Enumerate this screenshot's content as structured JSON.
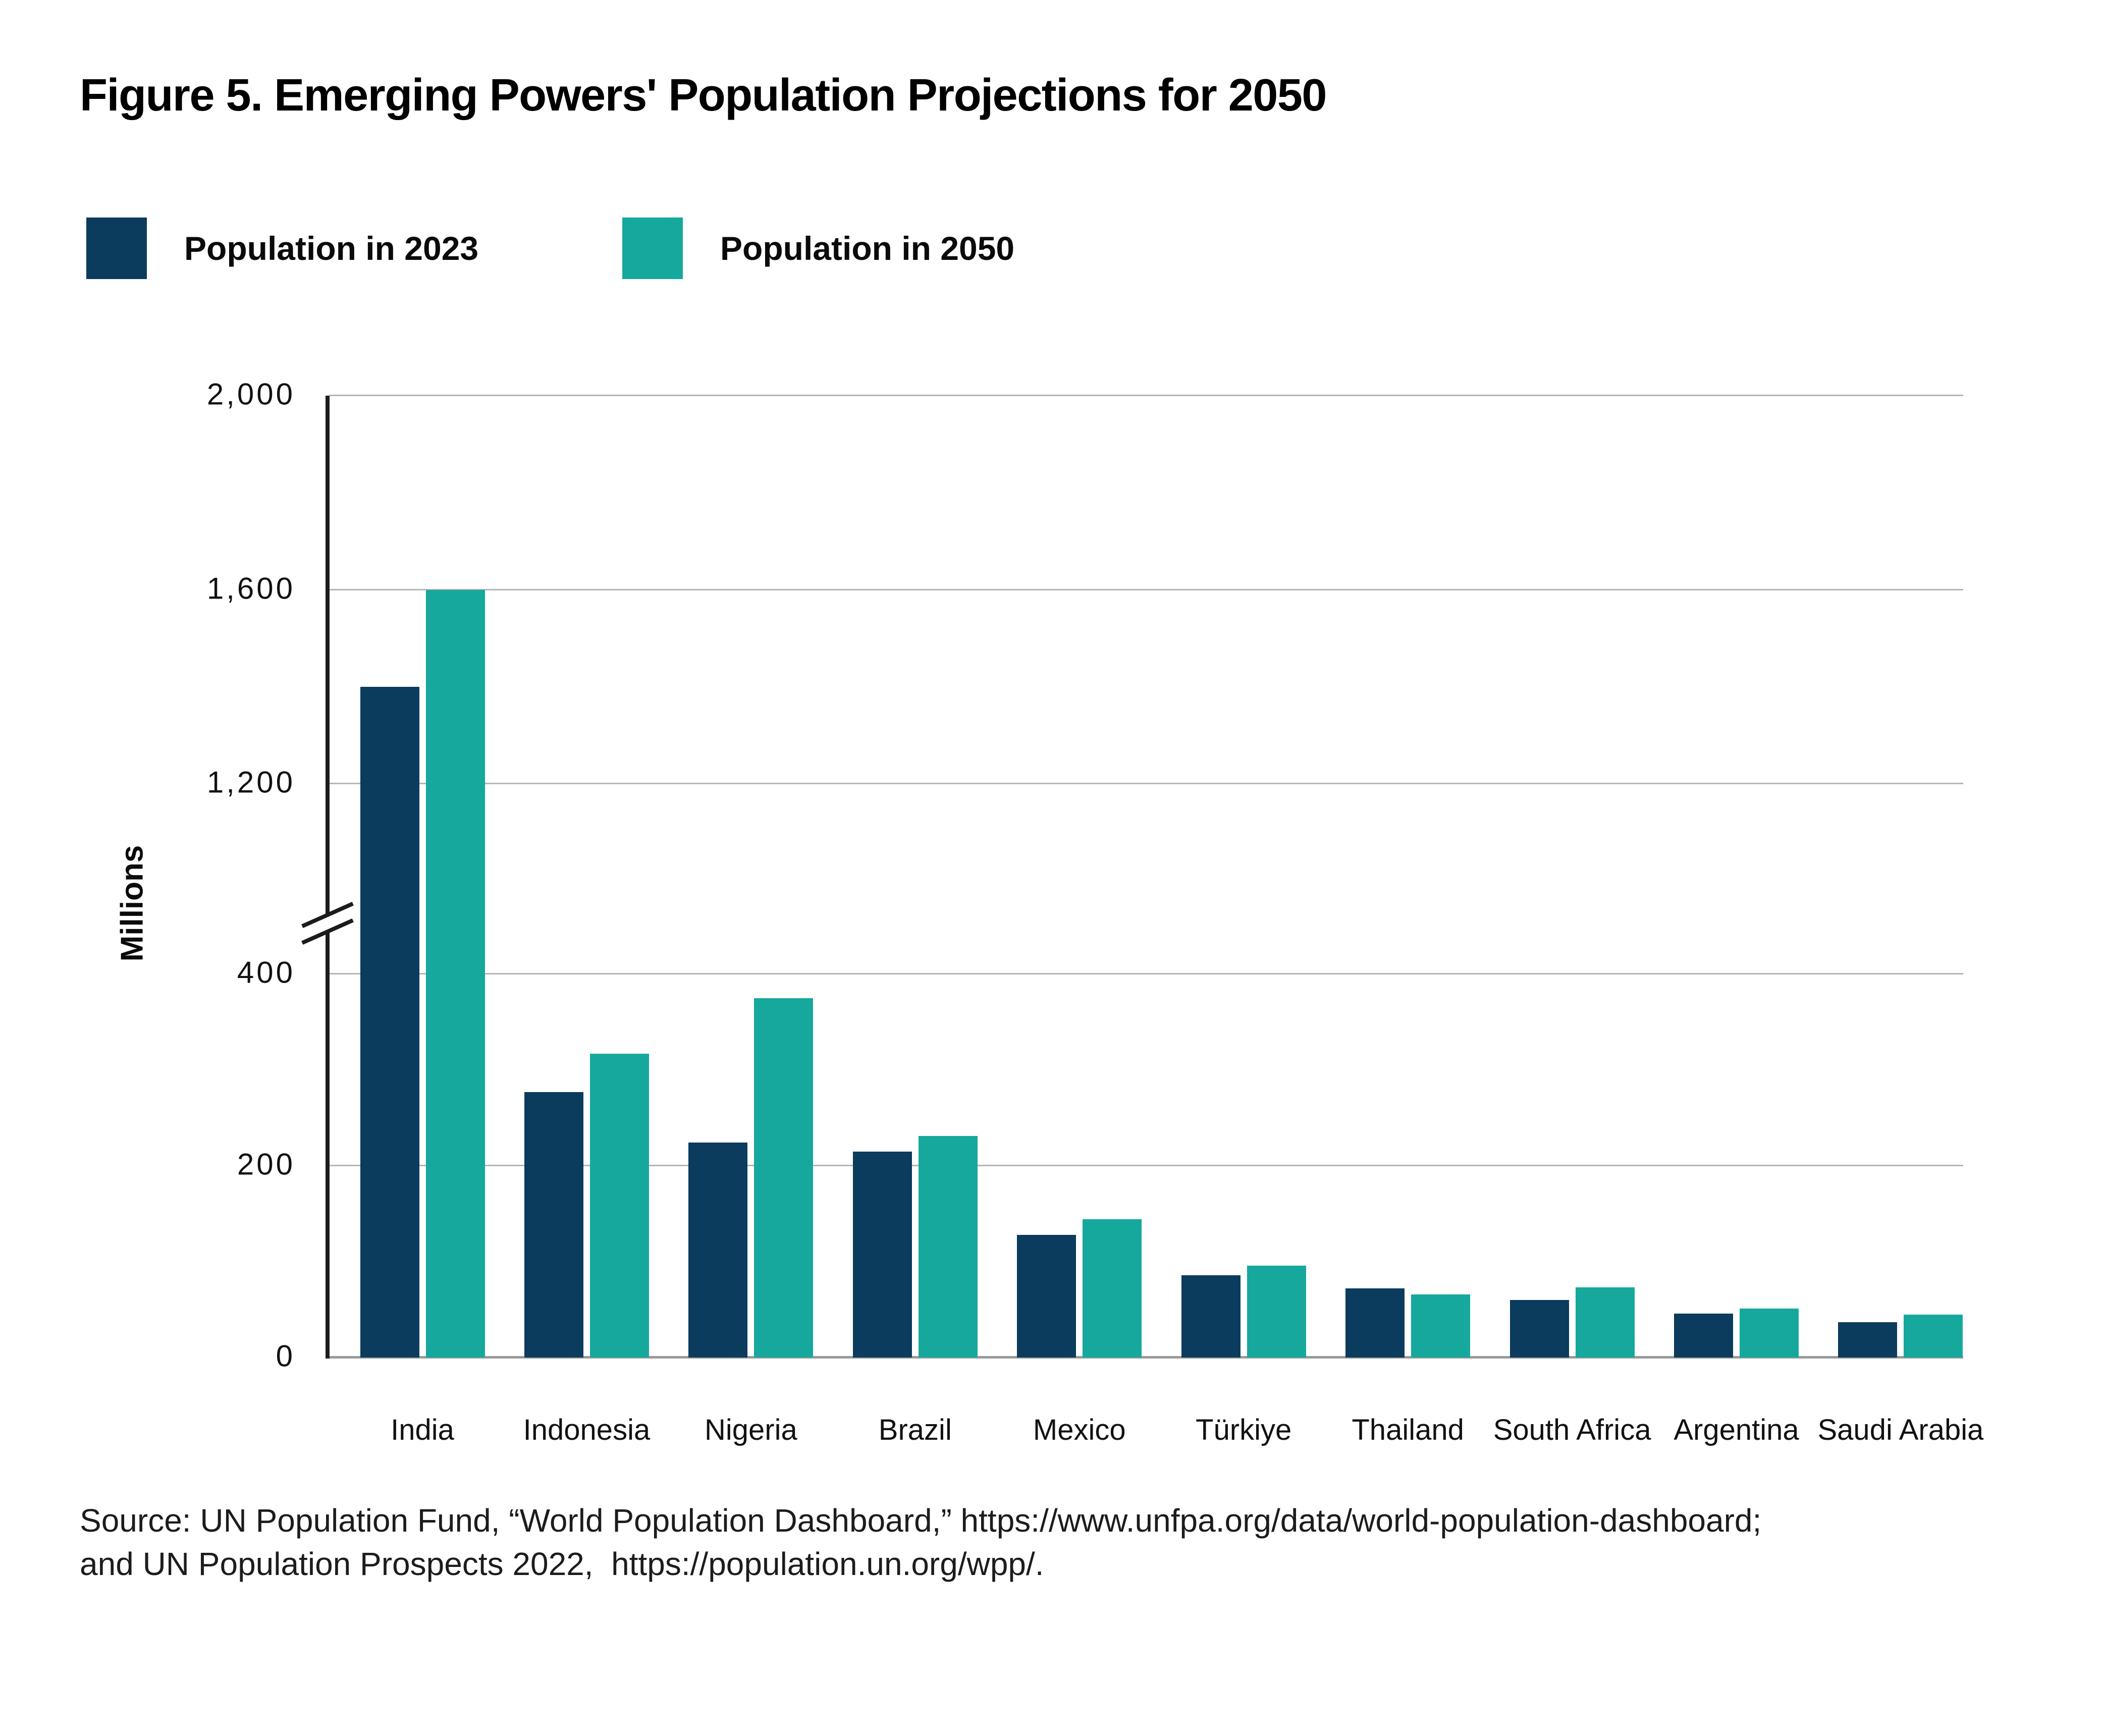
{
  "figure_title": "Figure 5. Emerging Powers' Population Projections for 2050",
  "legend": {
    "items": [
      {
        "label": "Population in 2023",
        "color": "#0B3B5D"
      },
      {
        "label": "Population in 2050",
        "color": "#16A89D"
      }
    ]
  },
  "chart_data": {
    "type": "bar",
    "title": "Figure 5. Emerging Powers' Population Projections for 2050",
    "xlabel": "",
    "ylabel": "Millions",
    "unit": "millions of people",
    "grid": "horizontal",
    "legend_position": "top-left",
    "categories": [
      "India",
      "Indonesia",
      "Nigeria",
      "Brazil",
      "Mexico",
      "Türkiye",
      "Thailand",
      "South Africa",
      "Argentina",
      "Saudi Arabia"
    ],
    "series": [
      {
        "name": "Population in 2023",
        "color": "#0B3B5D",
        "values": [
          1400,
          277,
          224,
          215,
          128,
          86,
          72,
          60,
          46,
          37
        ]
      },
      {
        "name": "Population in 2050",
        "color": "#16A89D",
        "values": [
          1600,
          317,
          375,
          231,
          144,
          96,
          66,
          73,
          51,
          45
        ]
      }
    ],
    "y_axis": {
      "range": [
        0,
        2000
      ],
      "axis_break": {
        "between": [
          400,
          1200
        ]
      },
      "ticks": [
        {
          "value": 0,
          "label": "0"
        },
        {
          "value": 200,
          "label": "200"
        },
        {
          "value": 400,
          "label": "400"
        },
        {
          "value": 1200,
          "label": "1,200"
        },
        {
          "value": 1600,
          "label": "1,600"
        },
        {
          "value": 2000,
          "label": "2,000"
        }
      ]
    }
  },
  "source": {
    "line1": "Source: UN Population Fund, “World Population Dashboard,” https://www.unfpa.org/data/world-population-dashboard;",
    "line2": "and UN Population Prospects 2022,  https://population.un.org/wpp/."
  }
}
